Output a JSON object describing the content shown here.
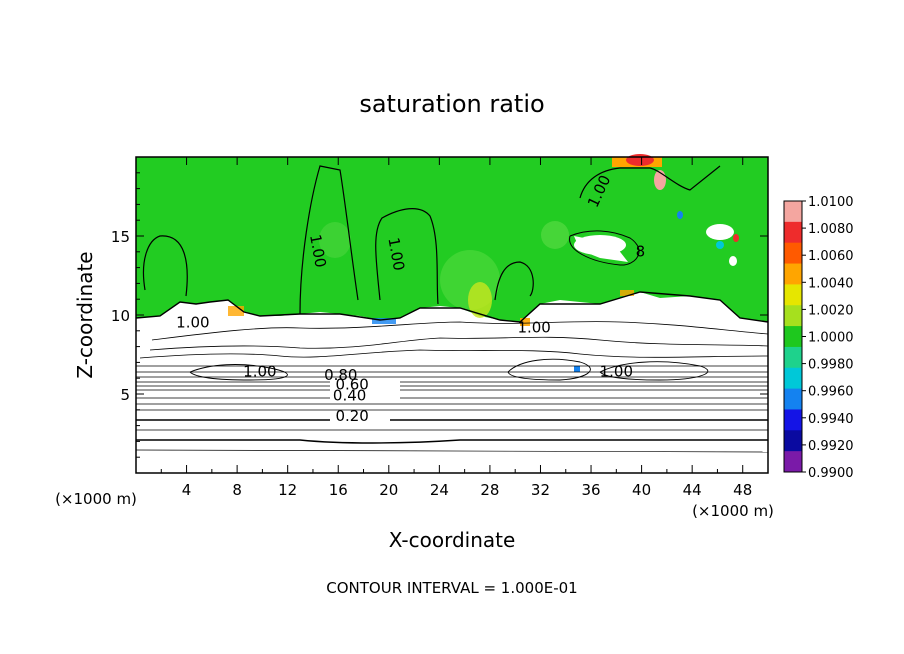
{
  "chart_data": {
    "type": "heatmap",
    "title": "saturation ratio",
    "xlabel": "X-coordinate",
    "ylabel": "Z-coordinate",
    "x_unit": "(×1000 m)",
    "y_unit": "(×1000 m)",
    "xlim": [
      0,
      50
    ],
    "ylim": [
      0,
      20
    ],
    "x_ticks": [
      "4",
      "8",
      "12",
      "16",
      "20",
      "24",
      "28",
      "32",
      "36",
      "40",
      "44",
      "48"
    ],
    "y_ticks": [
      "5",
      "10",
      "15"
    ],
    "x_tick_values": [
      4,
      8,
      12,
      16,
      20,
      24,
      28,
      32,
      36,
      40,
      44,
      48
    ],
    "y_tick_values": [
      5,
      10,
      15
    ],
    "footer": "CONTOUR INTERVAL = 1.000E-01",
    "colorbar": {
      "labels": [
        "1.0100",
        "1.0080",
        "1.0060",
        "1.0040",
        "1.0020",
        "1.0000",
        "0.9980",
        "0.9960",
        "0.9940",
        "0.9920",
        "0.9900"
      ],
      "colors": [
        "#f4a6a0",
        "#ee2c2c",
        "#ff5a00",
        "#ffa500",
        "#e6e600",
        "#a6e01e",
        "#1ec81e",
        "#1ed28c",
        "#00c8d8",
        "#1482f0",
        "#1414e6",
        "#0a0aa0",
        "#7a1aa8"
      ]
    },
    "contour_labels": [
      {
        "text": "1.00",
        "x": 14.0,
        "z": 14.0,
        "rotate": 80
      },
      {
        "text": "1.00",
        "x": 20.2,
        "z": 13.8,
        "rotate": 80
      },
      {
        "text": "1.00",
        "x": 37.0,
        "z": 17.7,
        "rotate": -65
      },
      {
        "text": "1.00",
        "x": 4.5,
        "z": 9.2,
        "rotate": 0
      },
      {
        "text": "1.00",
        "x": 31.5,
        "z": 8.9,
        "rotate": 0
      },
      {
        "text": "1.00",
        "x": 9.8,
        "z": 6.1,
        "rotate": 0
      },
      {
        "text": "1.00",
        "x": 38.0,
        "z": 6.1,
        "rotate": 0
      },
      {
        "text": "0.80",
        "x": 16.2,
        "z": 5.9,
        "rotate": 0
      },
      {
        "text": "0.60",
        "x": 17.1,
        "z": 5.3,
        "rotate": 0
      },
      {
        "text": "0.40",
        "x": 16.9,
        "z": 4.6,
        "rotate": 0
      },
      {
        "text": "0.20",
        "x": 17.1,
        "z": 3.3,
        "rotate": 0
      },
      {
        "text": "8",
        "x": 39.9,
        "z": 13.7,
        "rotate": 0
      }
    ],
    "cloud_top_z": 9.9,
    "field_value_above": "1.0000",
    "field_value_below": "contours only"
  }
}
